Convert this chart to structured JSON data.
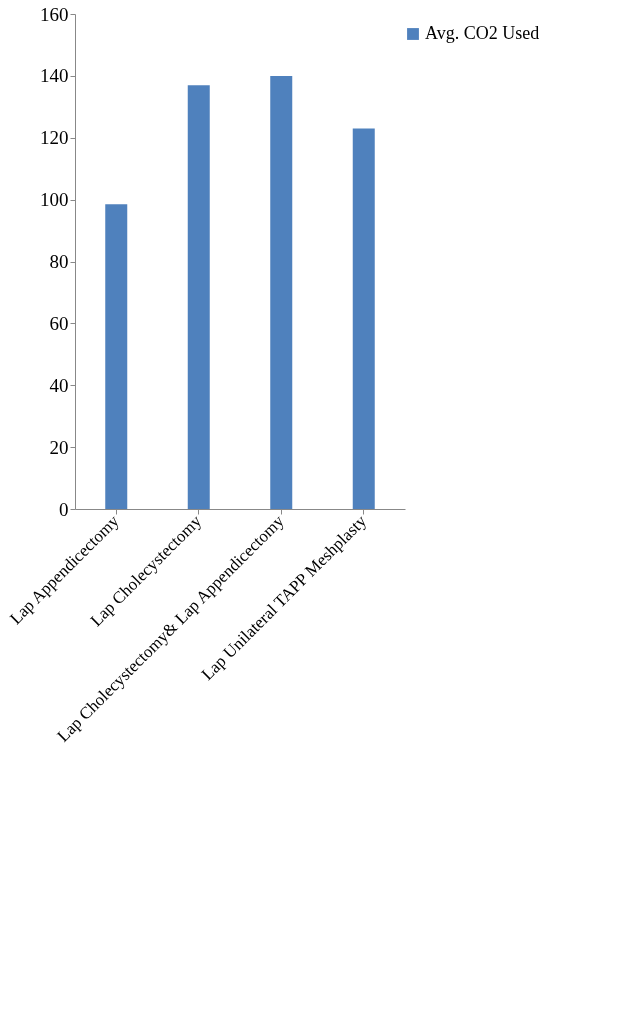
{
  "chart_data": {
    "type": "bar",
    "categories": [
      "Lap Appendicectomy",
      "Lap Cholecystectomy",
      "Lap Cholecystectomy& Lap Appendicectomy",
      "Lap Unilateral TAPP Meshplasty"
    ],
    "series": [
      {
        "name": "Avg. CO2 Used",
        "color": "#4f81bd",
        "values": [
          98.5,
          137,
          140,
          123
        ]
      }
    ],
    "ylim": [
      0,
      160
    ],
    "yticks": [
      0,
      20,
      40,
      60,
      80,
      100,
      120,
      140,
      160
    ],
    "grid": false,
    "legend": "right"
  }
}
